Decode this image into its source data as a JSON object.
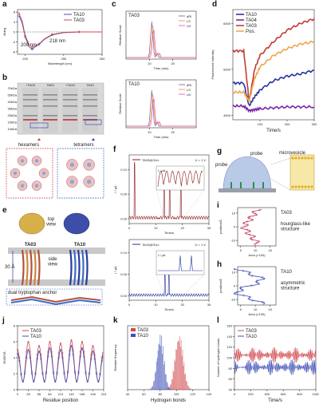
{
  "panels": {
    "a": {
      "label": "a",
      "legend": [
        "TA10",
        "TA03"
      ],
      "colors": [
        "#3f4fb5",
        "#d1494f"
      ],
      "ylabel": "Mdeg",
      "xlabel": "Wavelength (nm)",
      "ann1": "209 nm",
      "ann2": "218 nm",
      "xticks": [
        "200",
        "250",
        "300"
      ],
      "yticks": [
        "8",
        "4",
        "0",
        "-4",
        "-8"
      ]
    },
    "b": {
      "label": "b",
      "ladder": [
        "70kDa",
        "55kDa",
        "40kDa",
        "35kDa",
        "25kDa",
        "15kDa",
        "10kDa"
      ],
      "lanes": [
        "+TA03",
        "TA03",
        "+TA10",
        "TA10"
      ],
      "hex_label": "hexamers",
      "tet_label": "tetramers"
    },
    "c": {
      "label": "c",
      "top_title": "TA03",
      "bot_title": "TA10",
      "legend": [
        "dRI",
        "LS",
        "UV"
      ],
      "legend_colors": [
        "#7f5fbf",
        "#f0a030",
        "#e05cb0"
      ],
      "ylabel": "Relative Scale",
      "xlabel": "Time (min)",
      "xticks": [
        "10",
        "20"
      ]
    },
    "d": {
      "label": "d",
      "legend": [
        "TA10",
        "TA04",
        "TA03",
        "Pos."
      ],
      "colors": [
        "#2436a0",
        "#7a2aa8",
        "#c23b34",
        "#f0a64a"
      ],
      "ylabel": "Fluorescent Intensity",
      "xlabel": "Time/s",
      "yticks": [
        "6000",
        "5000",
        "4000"
      ],
      "xticks": [
        "100",
        "200",
        "300"
      ]
    },
    "e": {
      "label": "e",
      "top_view": "top\nview",
      "side_view": "side\nview",
      "ta03": "TA03",
      "ta10": "TA10",
      "dist": "30 Å",
      "anchor": "dual tryptophan anchor"
    },
    "f": {
      "label": "f",
      "top_legend": "TA03@GUv",
      "top_u": "U = 1 V",
      "bot_legend": "TA10@GUv",
      "bot_u": "U = 1 V",
      "ylabel": "I / μA",
      "xlabel": "Time/s",
      "top_yticks": [
        "0.10",
        "0.05",
        "0.00"
      ],
      "bot_yticks": [
        "0.10",
        "0.05",
        "0.00"
      ],
      "xticks": [
        "0",
        "10",
        "20",
        "30"
      ]
    },
    "g": {
      "label": "g",
      "probe1": "probe",
      "probe2": "probe",
      "micro": "microvesicle"
    },
    "i": {
      "label": "i",
      "ylabel": "position/Å",
      "xlabel": "Area (×100)",
      "name": "TA03",
      "note": "hourglass-like\nstructure",
      "xticks": [
        "5",
        "10",
        "15"
      ],
      "yticks": [
        "10",
        "0",
        "-10"
      ]
    },
    "h": {
      "label": "h",
      "ylabel": "position/Å",
      "xlabel": "Area (×100)",
      "name": "TA10",
      "note": "asymmetric\nstructure",
      "xticks": [
        "5",
        "10",
        "15"
      ],
      "yticks": [
        "10",
        "0",
        "-10"
      ]
    },
    "j": {
      "label": "j",
      "ylabel": "RMSF/Å",
      "xlabel": "Residue position",
      "legend": [
        "TA03",
        "TA10"
      ],
      "colors": [
        "#d1494f",
        "#3f4fb5"
      ],
      "xticks": [
        "0",
        "28",
        "56",
        "84",
        "112",
        "140",
        "168",
        "196",
        "224"
      ],
      "yticks": [
        "8",
        "6",
        "4",
        "2",
        "0"
      ]
    },
    "k": {
      "label": "k",
      "ylabel": "Relative frequency",
      "xlabel": "Hydrogen bonds",
      "legend": [
        "TA03",
        "TA10"
      ],
      "colors": [
        "#d1494f",
        "#3f4fb5"
      ],
      "xticks": [
        "40",
        "60",
        "80",
        "100",
        "120",
        "140"
      ]
    },
    "l": {
      "label": "l",
      "ylabel": "Number of hydrogen bonds",
      "xlabel": "Time/s",
      "legend": [
        "TA03",
        "TA10"
      ],
      "colors": [
        "#d1494f",
        "#3f4fb5"
      ],
      "xticks": [
        "0",
        "200",
        "400",
        "600",
        "800",
        "1000"
      ],
      "yticks": [
        "160",
        "140",
        "120",
        "100",
        "80",
        "60",
        "40"
      ]
    }
  },
  "chart_data": [
    {
      "type": "line",
      "panel": "a",
      "xlabel": "Wavelength (nm)",
      "ylabel": "Mdeg",
      "xlim": [
        190,
        300
      ],
      "ylim": [
        -9,
        9
      ],
      "series": [
        {
          "name": "TA10",
          "x": [
            192,
            196,
            200,
            205,
            209,
            213,
            218,
            225,
            235,
            250,
            270,
            300
          ],
          "y": [
            6.5,
            3.5,
            -2,
            -6,
            -7,
            -6,
            -5,
            -3,
            -1.2,
            -0.3,
            0,
            0
          ]
        },
        {
          "name": "TA03",
          "x": [
            192,
            196,
            200,
            205,
            209,
            213,
            218,
            225,
            235,
            250,
            270,
            300
          ],
          "y": [
            7.5,
            4.5,
            -1.5,
            -5,
            -6.2,
            -5.5,
            -4.8,
            -2.8,
            -1,
            -0.2,
            0,
            0
          ]
        }
      ]
    },
    {
      "type": "line",
      "panel": "d",
      "xlabel": "Time/s",
      "ylabel": "Fluorescent Intensity",
      "xlim": [
        0,
        300
      ],
      "ylim": [
        3900,
        6300
      ],
      "series": [
        {
          "name": "TA10",
          "x": [
            0,
            40,
            60,
            80,
            100,
            150,
            200,
            250,
            300
          ],
          "y": [
            4700,
            4700,
            4200,
            4400,
            4550,
            4750,
            4850,
            4900,
            4980
          ]
        },
        {
          "name": "TA04",
          "x": [
            0,
            40,
            60,
            80,
            100,
            150,
            200,
            250,
            300
          ],
          "y": [
            4200,
            4200,
            4100,
            4120,
            4140,
            4160,
            4180,
            4180,
            4180
          ]
        },
        {
          "name": "TA03",
          "x": [
            0,
            40,
            60,
            80,
            100,
            150,
            200,
            250,
            300
          ],
          "y": [
            5400,
            5400,
            4300,
            5000,
            5300,
            5600,
            5850,
            6000,
            6100
          ]
        },
        {
          "name": "Pos.",
          "x": [
            0,
            40,
            60,
            80,
            100,
            150,
            200,
            250,
            300
          ],
          "y": [
            4500,
            4500,
            4300,
            4800,
            5050,
            5300,
            5450,
            5550,
            5600
          ]
        }
      ]
    },
    {
      "type": "line",
      "panel": "j",
      "xlabel": "Residue position",
      "ylabel": "RMSF/Å",
      "xlim": [
        0,
        224
      ],
      "ylim": [
        0,
        8
      ],
      "series": [
        {
          "name": "TA03",
          "x": [
            0,
            14,
            28,
            42,
            56,
            70,
            84,
            98,
            112,
            126,
            140,
            154,
            168,
            182,
            196,
            210,
            224
          ],
          "y": [
            5,
            1,
            6,
            1,
            5.5,
            1,
            6,
            1,
            5.8,
            1,
            6.2,
            1,
            6,
            1,
            5.5,
            1,
            5
          ]
        },
        {
          "name": "TA10",
          "x": [
            0,
            14,
            28,
            42,
            56,
            70,
            84,
            98,
            112,
            126,
            140,
            154,
            168,
            182,
            196,
            210,
            224
          ],
          "y": [
            4.5,
            1,
            5,
            1,
            4.8,
            1,
            5.2,
            1,
            5,
            1,
            5.5,
            1,
            5.2,
            1,
            4.8,
            1,
            4.5
          ]
        }
      ]
    },
    {
      "type": "bar",
      "panel": "k",
      "xlabel": "Hydrogen bonds",
      "ylabel": "Relative frequency",
      "xlim": [
        40,
        140
      ],
      "series": [
        {
          "name": "TA03",
          "center": 103,
          "width": 14
        },
        {
          "name": "TA10",
          "center": 80,
          "width": 12
        }
      ]
    },
    {
      "type": "line",
      "panel": "l",
      "xlabel": "Time/s",
      "ylabel": "Number of hydrogen bonds",
      "xlim": [
        0,
        1000
      ],
      "ylim": [
        40,
        160
      ],
      "series": [
        {
          "name": "TA03",
          "mean": 105
        },
        {
          "name": "TA10",
          "mean": 82
        }
      ]
    }
  ]
}
